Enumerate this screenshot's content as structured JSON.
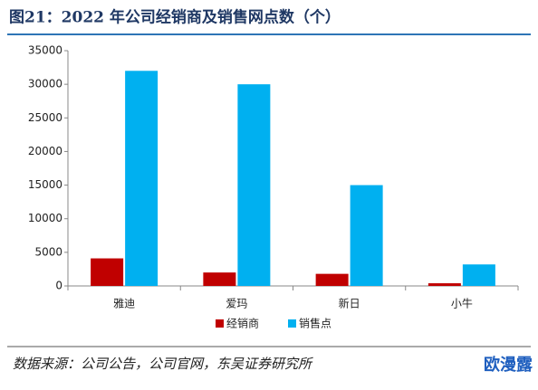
{
  "chart_data": {
    "type": "bar",
    "title": "图21：2022 年公司经销商及销售网点数（个）",
    "categories": [
      "雅迪",
      "爱玛",
      "新日",
      "小牛"
    ],
    "series": [
      {
        "name": "经销商",
        "color": "#c00000",
        "values": [
          4100,
          2000,
          1800,
          400
        ]
      },
      {
        "name": "销售点",
        "color": "#00b0f0",
        "values": [
          32000,
          30000,
          15000,
          3200
        ]
      }
    ],
    "ylim": [
      0,
      35000
    ],
    "yticks": [
      0,
      5000,
      10000,
      15000,
      20000,
      25000,
      30000,
      35000
    ],
    "grid": false,
    "legend": "bottom",
    "source": "数据来源：公司公告，公司官网，东吴证券研究所",
    "watermark": "欧漫露"
  }
}
